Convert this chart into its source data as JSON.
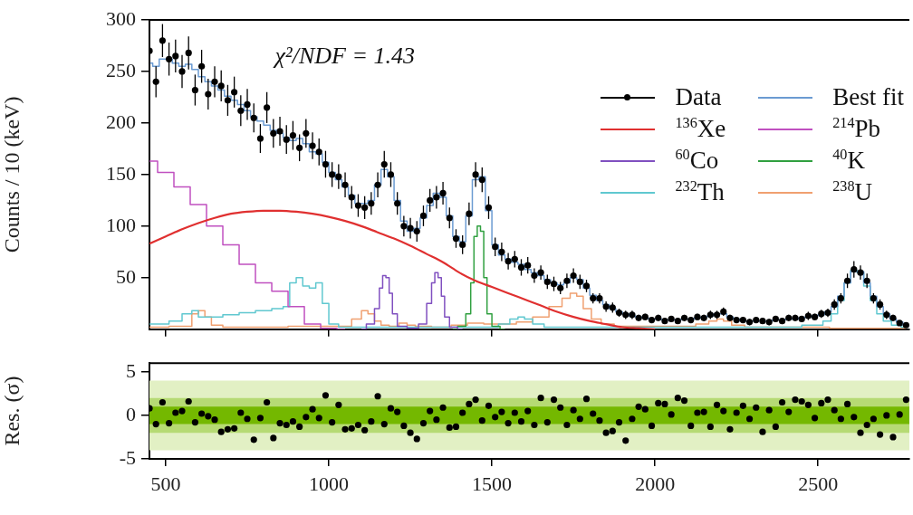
{
  "chart_data": [
    {
      "type": "line",
      "ylabel": "Counts / 10 (keV)",
      "annotations": [
        "χ²/NDF = 1.43"
      ],
      "x": [
        450,
        470,
        490,
        510,
        530,
        550,
        570,
        590,
        610,
        630,
        650,
        670,
        690,
        710,
        730,
        750,
        770,
        790,
        810,
        830,
        850,
        870,
        890,
        910,
        930,
        950,
        970,
        990,
        1010,
        1030,
        1050,
        1070,
        1090,
        1110,
        1130,
        1150,
        1170,
        1190,
        1210,
        1230,
        1250,
        1270,
        1290,
        1310,
        1330,
        1350,
        1370,
        1390,
        1410,
        1430,
        1450,
        1470,
        1490,
        1510,
        1530,
        1550,
        1570,
        1590,
        1610,
        1630,
        1650,
        1670,
        1690,
        1710,
        1730,
        1750,
        1770,
        1790,
        1810,
        1830,
        1850,
        1870,
        1890,
        1910,
        1930,
        1950,
        1970,
        1990,
        2010,
        2030,
        2050,
        2070,
        2090,
        2110,
        2130,
        2150,
        2170,
        2190,
        2210,
        2230,
        2250,
        2270,
        2290,
        2310,
        2330,
        2350,
        2370,
        2390,
        2410,
        2430,
        2450,
        2470,
        2490,
        2510,
        2530,
        2550,
        2570,
        2590,
        2610,
        2630,
        2650,
        2670,
        2690,
        2710,
        2730,
        2750,
        2770
      ],
      "xlim": [
        450,
        2780
      ],
      "xticks": [
        500,
        1000,
        1500,
        2000,
        2500
      ],
      "ylim": [
        0,
        300
      ],
      "yticks": [
        50,
        100,
        150,
        200,
        250,
        300
      ],
      "tick_labels": "y",
      "grid": false,
      "legend": "top right",
      "series": [
        {
          "name": "Data",
          "type": "scatter",
          "marker": "circle",
          "color": "#000000",
          "values": [
            270,
            240,
            280,
            262,
            265,
            250,
            268,
            232,
            255,
            228,
            240,
            236,
            222,
            230,
            212,
            218,
            205,
            185,
            215,
            190,
            192,
            184,
            188,
            176,
            190,
            178,
            172,
            160,
            150,
            148,
            140,
            128,
            120,
            118,
            122,
            140,
            160,
            150,
            122,
            100,
            98,
            95,
            110,
            125,
            128,
            132,
            108,
            88,
            82,
            112,
            150,
            145,
            118,
            80,
            75,
            66,
            68,
            60,
            62,
            52,
            55,
            46,
            44,
            40,
            47,
            52,
            46,
            42,
            30,
            30,
            22,
            21,
            16,
            14,
            14,
            11,
            12,
            9,
            11,
            8,
            10,
            8,
            11,
            9,
            12,
            11,
            14,
            14,
            17,
            11,
            9,
            9,
            7,
            9,
            8,
            7,
            10,
            8,
            11,
            11,
            10,
            13,
            12,
            15,
            16,
            24,
            30,
            47,
            58,
            55,
            47,
            30,
            24,
            14,
            11,
            6,
            4
          ],
          "errors": [
            16,
            15,
            16,
            16,
            16,
            16,
            16,
            15,
            16,
            15,
            15,
            15,
            15,
            15,
            15,
            15,
            14,
            14,
            15,
            14,
            14,
            14,
            14,
            13,
            14,
            13,
            13,
            13,
            12,
            12,
            12,
            11,
            11,
            11,
            11,
            12,
            13,
            12,
            11,
            10,
            10,
            10,
            10,
            11,
            11,
            11,
            10,
            9,
            9,
            11,
            12,
            12,
            11,
            9,
            9,
            8,
            8,
            8,
            8,
            7,
            7,
            7,
            7,
            6,
            7,
            7,
            7,
            6,
            5,
            5,
            5,
            5,
            4,
            4,
            4,
            3,
            3,
            3,
            3,
            3,
            3,
            3,
            3,
            3,
            3,
            3,
            4,
            4,
            4,
            3,
            3,
            3,
            3,
            3,
            3,
            3,
            3,
            3,
            3,
            3,
            3,
            4,
            3,
            4,
            4,
            5,
            5,
            7,
            8,
            7,
            7,
            5,
            5,
            4,
            3,
            2,
            2
          ]
        },
        {
          "name": "Best fit",
          "type": "step",
          "color": "#6b9bd2",
          "values": [
            258,
            255,
            262,
            262,
            258,
            255,
            257,
            252,
            245,
            240,
            236,
            232,
            226,
            222,
            218,
            212,
            206,
            202,
            198,
            193,
            190,
            186,
            183,
            185,
            180,
            172,
            170,
            162,
            152,
            145,
            138,
            130,
            122,
            122,
            125,
            140,
            155,
            148,
            125,
            105,
            95,
            98,
            108,
            120,
            132,
            128,
            110,
            90,
            85,
            110,
            145,
            148,
            115,
            82,
            72,
            68,
            65,
            63,
            58,
            55,
            52,
            48,
            45,
            43,
            45,
            50,
            48,
            40,
            33,
            28,
            24,
            20,
            17,
            15,
            13,
            12,
            11,
            10,
            10,
            9,
            9,
            9,
            10,
            10,
            11,
            12,
            13,
            15,
            15,
            12,
            10,
            8,
            8,
            8,
            8,
            8,
            9,
            9,
            10,
            10,
            11,
            12,
            13,
            14,
            17,
            22,
            32,
            45,
            56,
            56,
            45,
            32,
            22,
            15,
            10,
            7,
            4
          ]
        },
        {
          "name": "$^{136}$Xe",
          "color": "#e03030",
          "x": [
            450,
            500,
            550,
            600,
            650,
            700,
            750,
            800,
            850,
            900,
            950,
            1000,
            1050,
            1100,
            1150,
            1200,
            1250,
            1300,
            1350,
            1400,
            1450,
            1500,
            1550,
            1600,
            1650,
            1700,
            1750,
            1800,
            1850,
            1900,
            1950,
            2000
          ],
          "values": [
            83,
            90,
            97,
            103,
            108,
            112,
            114,
            115,
            115,
            114,
            112,
            109,
            105,
            100,
            94,
            88,
            81,
            73,
            65,
            55,
            47,
            41,
            35,
            29,
            23,
            17,
            12,
            8,
            5,
            2,
            1,
            0
          ]
        },
        {
          "name": "$^{214}$Pb",
          "type": "step",
          "color": "#c050c0",
          "x": [
            450,
            500,
            550,
            600,
            650,
            700,
            750,
            800,
            850,
            900,
            950,
            1000,
            1050
          ],
          "values": [
            163,
            152,
            138,
            121,
            100,
            82,
            63,
            45,
            37,
            22,
            5,
            1,
            0
          ]
        },
        {
          "name": "$^{60}$Co",
          "type": "step",
          "color": "#8050c0",
          "x": [
            1100,
            1130,
            1150,
            1160,
            1170,
            1180,
            1190,
            1200,
            1220,
            1260,
            1290,
            1310,
            1320,
            1330,
            1340,
            1350,
            1360,
            1380,
            1410
          ],
          "values": [
            0,
            5,
            20,
            40,
            52,
            50,
            35,
            15,
            3,
            1,
            5,
            25,
            45,
            55,
            50,
            32,
            12,
            2,
            0
          ]
        },
        {
          "name": "$^{40}$K",
          "type": "step",
          "color": "#30a040",
          "x": [
            1380,
            1410,
            1430,
            1440,
            1450,
            1460,
            1470,
            1480,
            1490,
            1510,
            1540
          ],
          "values": [
            0,
            3,
            15,
            45,
            90,
            100,
            95,
            50,
            15,
            3,
            0
          ]
        },
        {
          "name": "$^{232}$Th",
          "type": "step",
          "color": "#60c8d0",
          "x": [
            450,
            490,
            530,
            570,
            590,
            610,
            650,
            700,
            750,
            800,
            850,
            870,
            890,
            910,
            930,
            950,
            970,
            990,
            1010,
            1050,
            1500,
            1540,
            1570,
            1590,
            1610,
            1640,
            1680,
            2000,
            2400,
            2500,
            2530,
            2550,
            2570,
            2590,
            2610,
            2630,
            2650,
            2670,
            2690,
            2710,
            2740,
            2770
          ],
          "values": [
            5,
            5,
            8,
            15,
            18,
            12,
            12,
            14,
            16,
            18,
            20,
            22,
            45,
            50,
            42,
            40,
            45,
            25,
            5,
            2,
            2,
            5,
            10,
            12,
            10,
            5,
            2,
            2,
            2,
            4,
            8,
            15,
            28,
            45,
            57,
            55,
            42,
            28,
            15,
            8,
            4,
            2
          ]
        },
        {
          "name": "$^{238}$U",
          "type": "step",
          "color": "#f0a070",
          "x": [
            450,
            570,
            590,
            610,
            630,
            650,
            700,
            1050,
            1090,
            1110,
            1130,
            1150,
            1170,
            1200,
            1230,
            1250,
            1280,
            1350,
            1400,
            1450,
            1500,
            1550,
            1600,
            1650,
            1700,
            1730,
            1750,
            1770,
            1790,
            1820,
            1850,
            1900,
            2000,
            2100,
            2150,
            2180,
            2200,
            2220,
            2250,
            2300,
            2770
          ],
          "values": [
            2,
            3,
            15,
            18,
            12,
            4,
            2,
            3,
            10,
            18,
            15,
            8,
            4,
            3,
            6,
            4,
            3,
            2,
            4,
            6,
            5,
            5,
            7,
            12,
            22,
            30,
            35,
            32,
            20,
            10,
            5,
            3,
            3,
            3,
            5,
            8,
            10,
            8,
            4,
            2,
            1
          ]
        }
      ]
    },
    {
      "type": "scatter",
      "ylabel": "Res. (σ)",
      "color": "#000000",
      "marker": "circle",
      "grid": false,
      "x": [
        450,
        470,
        490,
        510,
        530,
        550,
        570,
        590,
        610,
        630,
        650,
        670,
        690,
        710,
        730,
        750,
        770,
        790,
        810,
        830,
        850,
        870,
        890,
        910,
        930,
        950,
        970,
        990,
        1010,
        1030,
        1050,
        1070,
        1090,
        1110,
        1130,
        1150,
        1170,
        1190,
        1210,
        1230,
        1250,
        1270,
        1290,
        1310,
        1330,
        1350,
        1370,
        1390,
        1410,
        1430,
        1450,
        1470,
        1490,
        1510,
        1530,
        1550,
        1570,
        1590,
        1610,
        1630,
        1650,
        1670,
        1690,
        1710,
        1730,
        1750,
        1770,
        1790,
        1810,
        1830,
        1850,
        1870,
        1890,
        1910,
        1930,
        1950,
        1970,
        1990,
        2010,
        2030,
        2050,
        2070,
        2090,
        2110,
        2130,
        2150,
        2170,
        2190,
        2210,
        2230,
        2250,
        2270,
        2290,
        2310,
        2330,
        2350,
        2370,
        2390,
        2410,
        2430,
        2450,
        2470,
        2490,
        2510,
        2530,
        2550,
        2570,
        2590,
        2610,
        2630,
        2650,
        2670,
        2690,
        2710,
        2730,
        2750,
        2770
      ],
      "values": [
        0.8,
        -1.0,
        1.5,
        -0.9,
        0.3,
        0.5,
        1.6,
        -0.8,
        0.2,
        -0.1,
        -0.5,
        -1.9,
        -1.6,
        -1.5,
        0.3,
        -0.4,
        -2.8,
        -0.3,
        1.5,
        -2.6,
        -0.9,
        -1.1,
        -0.7,
        -1.3,
        -0.2,
        0.7,
        -0.3,
        2.3,
        -0.8,
        1.2,
        -1.6,
        -1.5,
        -1.1,
        -1.7,
        -0.7,
        2.2,
        -1.0,
        0.8,
        0.4,
        -1.2,
        -2.0,
        -2.7,
        -0.9,
        0.5,
        -0.5,
        0.9,
        -1.4,
        -1.3,
        0.3,
        1.3,
        1.8,
        -0.6,
        1.1,
        -0.2,
        0.4,
        -0.9,
        0.3,
        -0.7,
        0.5,
        -1.1,
        2.0,
        -0.8,
        1.8,
        0.9,
        -1.1,
        0.6,
        -0.4,
        1.9,
        0.2,
        -0.6,
        -2.0,
        -1.8,
        -0.8,
        -2.9,
        -0.4,
        1.0,
        0.7,
        -1.2,
        1.4,
        1.3,
        0.1,
        2.0,
        1.7,
        -1.2,
        0.3,
        0.4,
        -1.3,
        1.2,
        0.5,
        -1.6,
        0.3,
        1.1,
        -0.4,
        0.9,
        -1.9,
        0.6,
        -1.3,
        1.5,
        0.4,
        1.8,
        1.6,
        1.2,
        -0.3,
        1.4,
        1.8,
        0.6,
        -0.4,
        1.3,
        -0.2,
        -2.0,
        -1.1,
        -0.4,
        -2.2,
        0.0,
        -2.5,
        0.1,
        1.8
      ],
      "xlim": [
        450,
        2780
      ],
      "xticks": [
        500,
        1000,
        1500,
        2000,
        2500
      ],
      "ylim": [
        -5,
        6
      ],
      "yticks": [
        -5,
        0,
        5
      ],
      "bands": [
        {
          "axis": "y",
          "from": -4,
          "to": 4,
          "color": "#e2f0c4"
        },
        {
          "axis": "y",
          "from": -2,
          "to": 2,
          "color": "#b6da74"
        },
        {
          "axis": "y",
          "from": -1,
          "to": 1,
          "color": "#74b800"
        }
      ]
    }
  ]
}
